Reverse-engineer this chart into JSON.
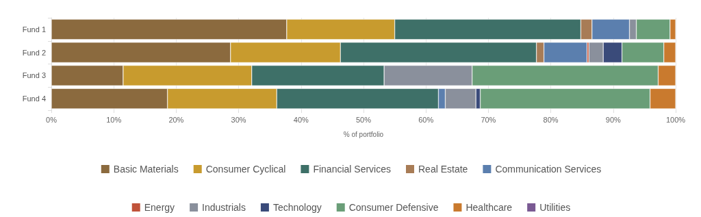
{
  "chart_data": {
    "type": "bar",
    "orientation": "horizontal",
    "stacked": true,
    "xlabel": "% of portfolio",
    "categories": [
      "Fund 1",
      "Fund 2",
      "Fund 3",
      "Fund 4"
    ],
    "xlim": [
      0,
      100
    ],
    "xticks": [
      {
        "value": 0,
        "label": "0%"
      },
      {
        "value": 10,
        "label": "10%"
      },
      {
        "value": 20,
        "label": "20%"
      },
      {
        "value": 30,
        "label": "30%"
      },
      {
        "value": 40,
        "label": "40%"
      },
      {
        "value": 50,
        "label": "50%"
      },
      {
        "value": 60,
        "label": "60%"
      },
      {
        "value": 70,
        "label": "70%"
      },
      {
        "value": 80,
        "label": "80%"
      },
      {
        "value": 90,
        "label": "90%"
      },
      {
        "value": 100,
        "label": "100%"
      }
    ],
    "grid": "x",
    "legend": "bottom",
    "series": [
      {
        "name": "Basic Materials",
        "color": "#8b6a3e",
        "values": [
          37.7,
          28.7,
          11.5,
          18.6
        ]
      },
      {
        "name": "Consumer Cyclical",
        "color": "#c89b2e",
        "values": [
          17.3,
          17.6,
          20.6,
          17.5
        ]
      },
      {
        "name": "Financial Services",
        "color": "#3e7068",
        "values": [
          29.8,
          31.4,
          21.2,
          25.9
        ]
      },
      {
        "name": "Real Estate",
        "color": "#a87c56",
        "values": [
          1.8,
          1.2,
          null,
          null
        ]
      },
      {
        "name": "Communication Services",
        "color": "#5b7fae",
        "values": [
          6.0,
          6.9,
          null,
          1.1
        ]
      },
      {
        "name": "Energy",
        "color": "#c0533a",
        "values": [
          null,
          0.3,
          null,
          null
        ]
      },
      {
        "name": "Industrials",
        "color": "#8a909c",
        "values": [
          1.1,
          2.3,
          14.1,
          4.9
        ]
      },
      {
        "name": "Technology",
        "color": "#3a4b7a",
        "values": [
          null,
          3.0,
          null,
          0.7
        ]
      },
      {
        "name": "Consumer Defensive",
        "color": "#6a9e78",
        "values": [
          5.4,
          6.7,
          29.8,
          27.2
        ]
      },
      {
        "name": "Healthcare",
        "color": "#c97a2e",
        "values": [
          0.9,
          1.9,
          2.8,
          4.1
        ]
      },
      {
        "name": "Utilities",
        "color": "#7a5a93",
        "values": [
          null,
          null,
          null,
          null
        ]
      }
    ]
  }
}
